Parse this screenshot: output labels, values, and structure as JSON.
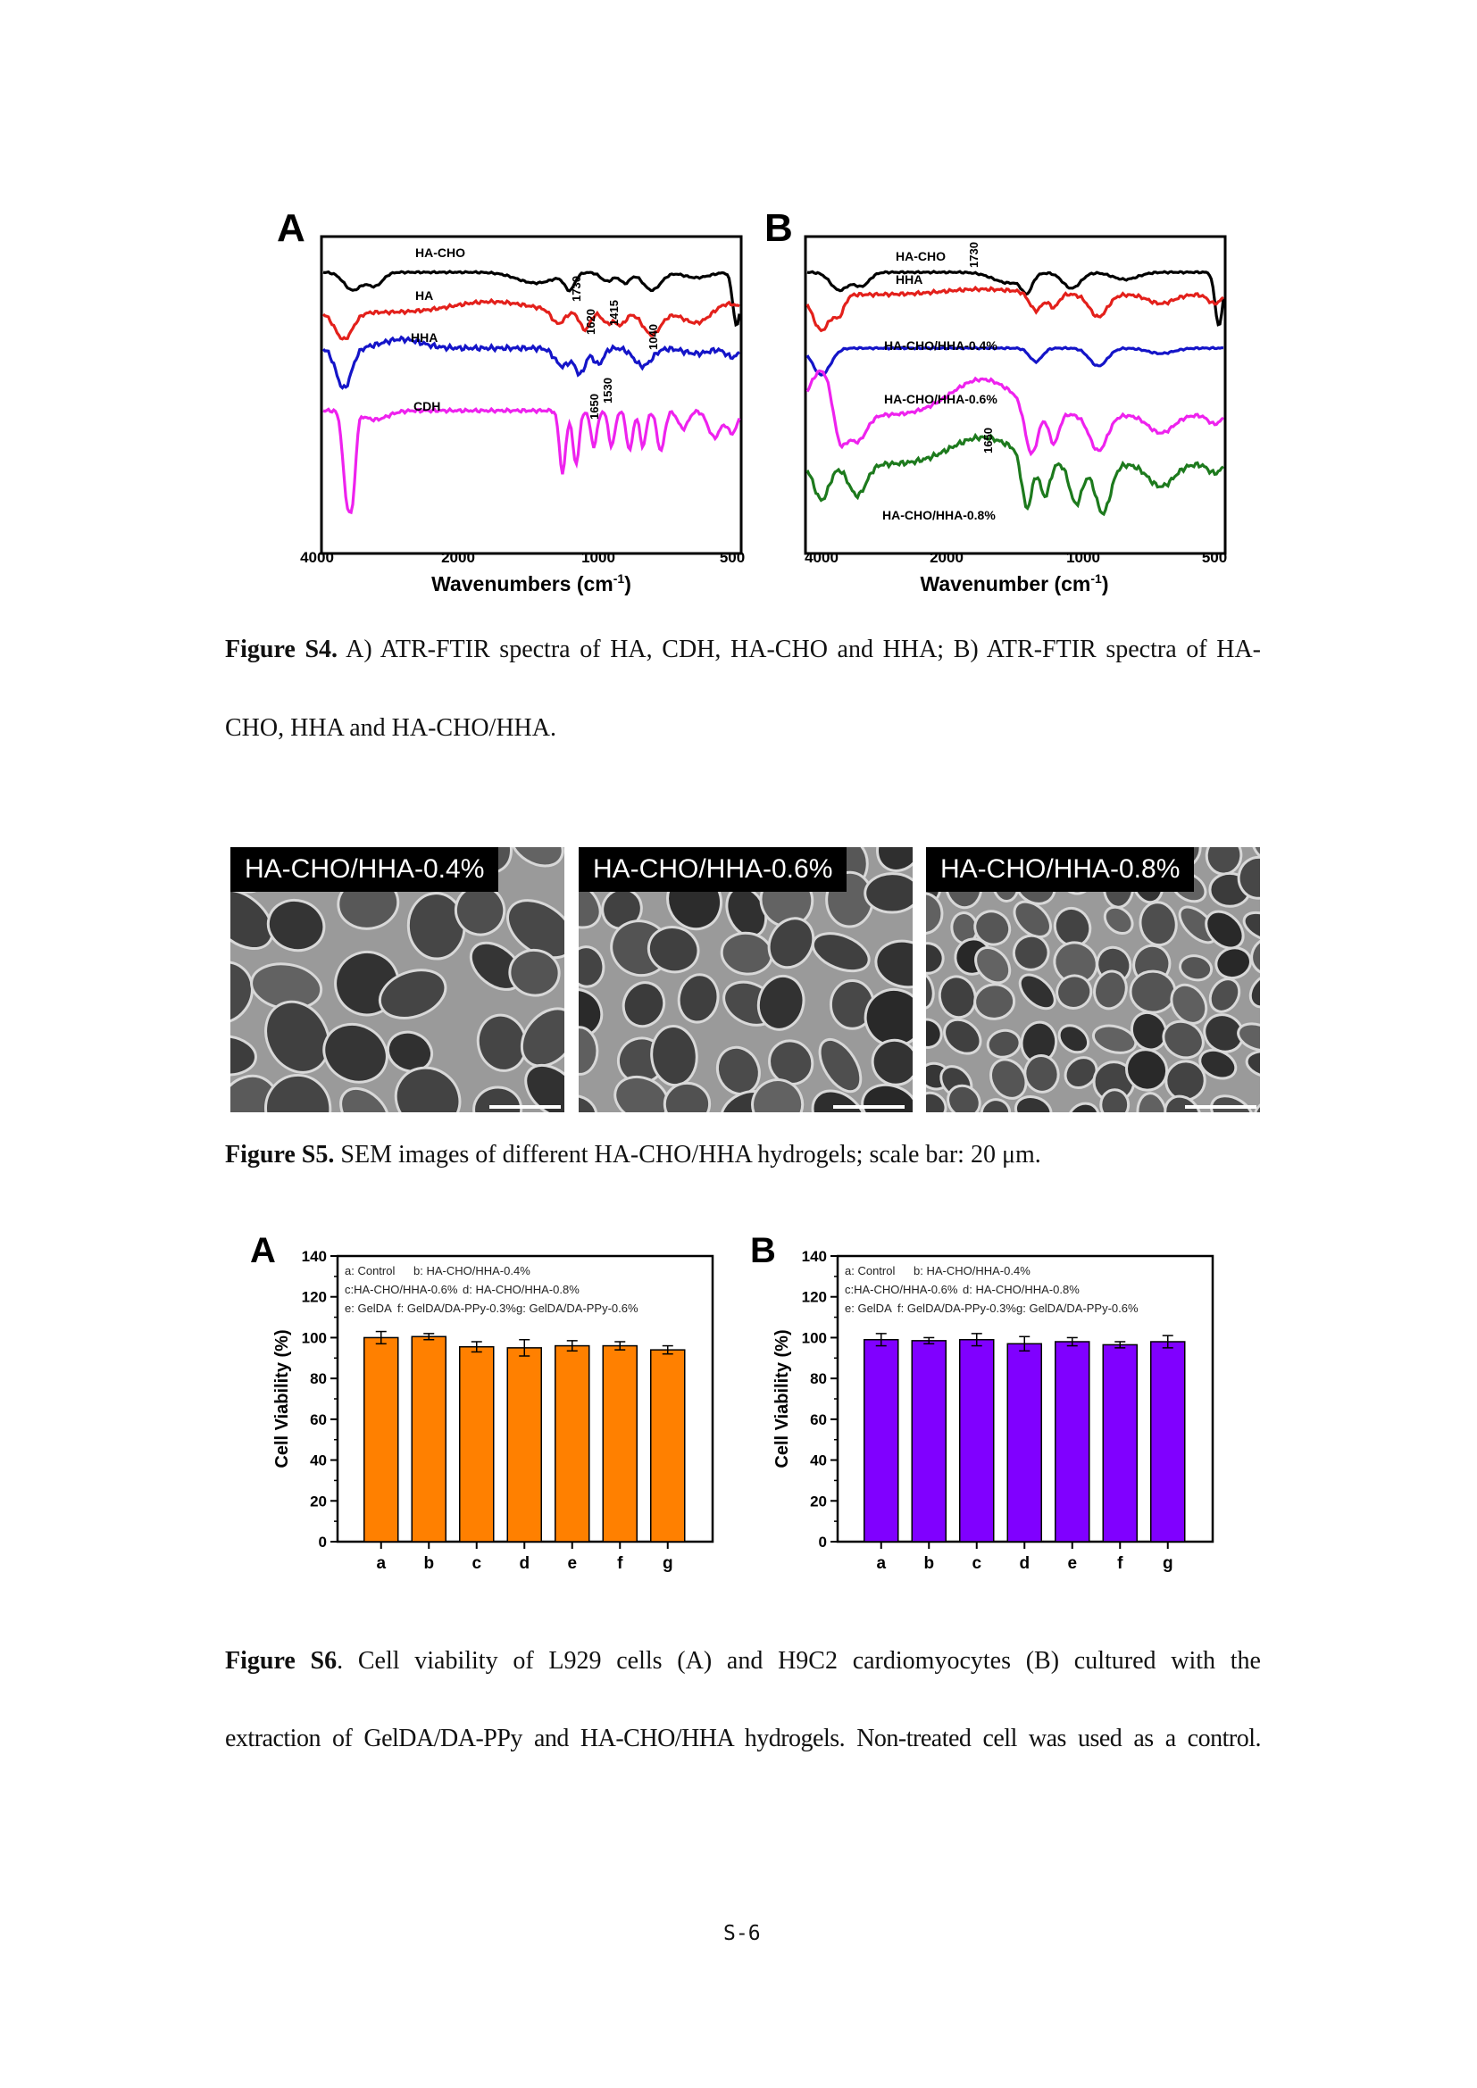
{
  "figure_s4": {
    "panel_a": {
      "letter": "A",
      "series_labels": [
        "HA-CHO",
        "HA",
        "HHA",
        "CDH"
      ],
      "peak_labels": [
        "1730",
        "1620",
        "1415",
        "1040",
        "1650",
        "1530"
      ],
      "xticks": [
        "4000",
        "2000",
        "1000",
        "500"
      ],
      "xlabel_main": "Wavenumbers (cm",
      "xlabel_sup": "-1",
      "xlabel_end": ")"
    },
    "panel_b": {
      "letter": "B",
      "series_labels": [
        "HA-CHO",
        "HHA",
        "HA-CHO/HHA-0.4%",
        "HA-CHO/HHA-0.6%",
        "HA-CHO/HHA-0.8%"
      ],
      "peak_labels": [
        "1730",
        "1650"
      ],
      "xticks": [
        "4000",
        "2000",
        "1000",
        "500"
      ],
      "xlabel_main": "Wavenumber (cm",
      "xlabel_sup": "-1",
      "xlabel_end": ")"
    },
    "colors": {
      "black": "#000000",
      "red": "#e3201b",
      "blue": "#1414c8",
      "magenta": "#ee22ee",
      "green": "#1d7a1d"
    },
    "caption_label": "Figure S4.",
    "caption_line1": " A) ATR-FTIR spectra of HA, CDH, HA-CHO and HHA; B) ATR-FTIR spectra of HA-",
    "caption_line2": "CHO, HHA and HA-CHO/HHA."
  },
  "figure_s5": {
    "panels": [
      {
        "label": "HA-CHO/HHA-0.4%"
      },
      {
        "label": "HA-CHO/HHA-0.6%"
      },
      {
        "label": "HA-CHO/HHA-0.8%"
      }
    ],
    "caption_label": "Figure S5.",
    "caption_text": " SEM images of different HA-CHO/HHA hydrogels; scale bar: 20 μm."
  },
  "chart_data": [
    {
      "type": "bar",
      "panel": "A",
      "categories": [
        "a",
        "b",
        "c",
        "d",
        "e",
        "f",
        "g"
      ],
      "values": [
        100,
        100.5,
        95.5,
        95,
        96,
        96,
        94
      ],
      "errors": [
        3,
        1.5,
        2.5,
        4,
        2.5,
        2,
        2
      ],
      "ylabel": "Cell Viability (%)",
      "ylim": [
        0,
        140
      ],
      "yticks": [
        "0",
        "20",
        "40",
        "60",
        "80",
        "100",
        "120",
        "140"
      ],
      "legend_rows": [
        [
          "a: Control",
          "b: HA-CHO/HHA-0.4%"
        ],
        [
          "c:HA-CHO/HHA-0.6%",
          "d: HA-CHO/HHA-0.8%"
        ],
        [
          "e: GelDA",
          "f: GelDA/DA-PPy-0.3%",
          "g: GelDA/DA-PPy-0.6%"
        ]
      ],
      "bar_color": "#ff8000"
    },
    {
      "type": "bar",
      "panel": "B",
      "categories": [
        "a",
        "b",
        "c",
        "d",
        "e",
        "f",
        "g"
      ],
      "values": [
        99,
        98.5,
        99,
        97,
        98,
        96.5,
        98
      ],
      "errors": [
        3,
        1.5,
        3,
        3.5,
        2,
        1.5,
        3
      ],
      "ylabel": "Cell Viability (%)",
      "ylim": [
        0,
        140
      ],
      "yticks": [
        "0",
        "20",
        "40",
        "60",
        "80",
        "100",
        "120",
        "140"
      ],
      "legend_rows": [
        [
          "a: Control",
          "b: HA-CHO/HHA-0.4%"
        ],
        [
          "c:HA-CHO/HHA-0.6%",
          "d: HA-CHO/HHA-0.8%"
        ],
        [
          "e: GelDA",
          "f: GelDA/DA-PPy-0.3%",
          "g: GelDA/DA-PPy-0.6%"
        ]
      ],
      "bar_color": "#8000ff"
    }
  ],
  "figure_s6": {
    "caption_label": "Figure S6",
    "caption_line1": ". Cell viability of L929 cells (A) and H9C2 cardiomyocytes (B) cultured with the",
    "caption_line2": "extraction of GelDA/DA-PPy and HA-CHO/HHA hydrogels. Non-treated cell was used as a control."
  },
  "page_number": "S-6"
}
